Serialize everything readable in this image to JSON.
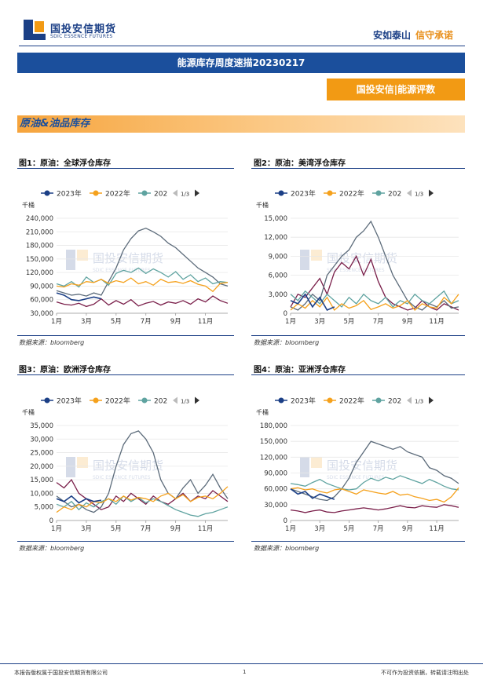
{
  "header": {
    "logo_cn": "国投安信期货",
    "logo_en": "SDIC ESSENCE FUTURES",
    "slogan_blue": "安如泰山",
    "slogan_orange": "信守承诺"
  },
  "banner_title": "能源库存周度速描20230217",
  "tag": "国投安信|能源评数",
  "section_title": "原油&油品库存",
  "watermark": "国投安信期货",
  "watermark_en": "SDIC ESSENCE FUTURES",
  "source_label": "数据来源：bloomberg",
  "legend": {
    "s2023": "2023年",
    "s2022": "2022年",
    "s202": "202",
    "pager": "1/3"
  },
  "colors": {
    "s2023": "#1b3f86",
    "s2022": "#f5a11c",
    "s2021": "#5fa3a0",
    "s2020": "#5c6b7a",
    "s2019": "#7a1f4a"
  },
  "figures": [
    {
      "title": "图1：原油：全球浮仓库存",
      "unit": "千桶",
      "x_ticks": [
        "1月",
        "3月",
        "5月",
        "7月",
        "9月",
        "11月"
      ]
    },
    {
      "title": "图2：原油：美湾浮仓库存",
      "unit": "千桶",
      "x_ticks": [
        "1月",
        "3月",
        "5月",
        "7月",
        "9月",
        "11月"
      ]
    },
    {
      "title": "图3：原油：欧洲浮仓库存",
      "unit": "千桶",
      "x_ticks": [
        "1月",
        "3月",
        "5月",
        "7月",
        "9月",
        "11月"
      ]
    },
    {
      "title": "图4：原油：亚洲浮仓库存",
      "unit": "千桶",
      "x_ticks": [
        "1月",
        "3月",
        "5月",
        "7月",
        "9月",
        "11月"
      ]
    }
  ],
  "chart_data": [
    {
      "type": "line",
      "title": "图1：原油：全球浮仓库存",
      "ylabel": "千桶",
      "y_ticks": [
        "30,000",
        "60,000",
        "90,000",
        "120,000",
        "150,000",
        "180,000",
        "210,000",
        "240,000"
      ],
      "ylim": [
        30000,
        240000
      ],
      "x_ticks": [
        "1月",
        "3月",
        "5月",
        "7月",
        "9月",
        "11月"
      ],
      "series": [
        {
          "name": "2023年",
          "key": "s2023",
          "values": [
            75000,
            70000,
            60000,
            58000,
            62000,
            66000,
            62000
          ]
        },
        {
          "name": "2022年",
          "key": "s2022",
          "values": [
            90000,
            88000,
            95000,
            92000,
            100000,
            98000,
            105000,
            96000,
            102000,
            98000,
            108000,
            95000,
            100000,
            92000,
            105000,
            98000,
            100000,
            96000,
            102000,
            94000,
            90000,
            78000,
            96000,
            98000
          ]
        },
        {
          "name": "202",
          "key": "s2021",
          "values": [
            95000,
            90000,
            100000,
            88000,
            110000,
            98000,
            105000,
            92000,
            118000,
            125000,
            120000,
            130000,
            118000,
            128000,
            120000,
            110000,
            122000,
            105000,
            115000,
            100000,
            108000,
            95000,
            100000,
            98000
          ]
        },
        {
          "key": "s2020",
          "values": [
            80000,
            75000,
            70000,
            72000,
            68000,
            75000,
            70000,
            100000,
            130000,
            170000,
            195000,
            212000,
            218000,
            210000,
            200000,
            185000,
            175000,
            160000,
            145000,
            130000,
            120000,
            110000,
            95000,
            90000
          ]
        },
        {
          "key": "s2019",
          "values": [
            55000,
            50000,
            48000,
            52000,
            45000,
            50000,
            62000,
            48000,
            58000,
            50000,
            60000,
            46000,
            52000,
            56000,
            48000,
            55000,
            52000,
            58000,
            50000,
            62000,
            55000,
            68000,
            58000,
            52000
          ]
        }
      ]
    },
    {
      "type": "line",
      "title": "图2：原油：美湾浮仓库存",
      "ylabel": "千桶",
      "y_ticks": [
        "0",
        "3,000",
        "6,000",
        "9,000",
        "12,000",
        "15,000"
      ],
      "ylim": [
        0,
        15000
      ],
      "x_ticks": [
        "1月",
        "3月",
        "5月",
        "7月",
        "9月",
        "11月"
      ],
      "series": [
        {
          "name": "2023年",
          "key": "s2023",
          "values": [
            2000,
            1500,
            3000,
            1000,
            2500,
            500,
            1000
          ]
        },
        {
          "name": "2022年",
          "key": "s2022",
          "values": [
            500,
            1500,
            800,
            2000,
            1000,
            2500,
            500,
            1500,
            800,
            1200,
            2000,
            600,
            1000,
            1500,
            800,
            1200,
            2000,
            500,
            1500,
            1000,
            800,
            2500,
            1500,
            3000
          ]
        },
        {
          "name": "202",
          "key": "s2021",
          "values": [
            3000,
            2000,
            3500,
            2500,
            1500,
            3000,
            2000,
            1000,
            2500,
            1500,
            3000,
            2000,
            1500,
            2500,
            1000,
            2000,
            1500,
            3000,
            2000,
            1500,
            2500,
            3500,
            1500,
            2000
          ]
        },
        {
          "key": "s2020",
          "values": [
            1000,
            500,
            1500,
            3000,
            2000,
            6000,
            7500,
            9000,
            10000,
            12000,
            13000,
            14500,
            12000,
            9000,
            6000,
            4000,
            2000,
            1000,
            500,
            1500,
            1000,
            2000,
            800,
            1000
          ]
        },
        {
          "key": "s2019",
          "values": [
            1000,
            3000,
            2500,
            4000,
            5500,
            3000,
            6500,
            8000,
            7000,
            9000,
            6000,
            8500,
            5000,
            2500,
            1500,
            1000,
            500,
            800,
            2000,
            1000,
            500,
            1500,
            1000,
            500
          ]
        }
      ]
    },
    {
      "type": "line",
      "title": "图3：原油：欧洲浮仓库存",
      "ylabel": "千桶",
      "y_ticks": [
        "0",
        "5,000",
        "10,000",
        "15,000",
        "20,000",
        "25,000",
        "30,000",
        "35,000"
      ],
      "ylim": [
        0,
        35000
      ],
      "x_ticks": [
        "1月",
        "3月",
        "5月",
        "7月",
        "9月",
        "11月"
      ],
      "series": [
        {
          "name": "2023年",
          "key": "s2023",
          "values": [
            8000,
            7000,
            9000,
            6500,
            8000,
            7000,
            7500
          ]
        },
        {
          "name": "2022年",
          "key": "s2022",
          "values": [
            3000,
            5000,
            4000,
            6000,
            5000,
            7000,
            6500,
            8000,
            7000,
            9000,
            7500,
            8500,
            8000,
            7000,
            9000,
            10000,
            8000,
            9500,
            7000,
            8500,
            9000,
            8000,
            10000,
            12500
          ]
        },
        {
          "name": "202",
          "key": "s2021",
          "values": [
            6000,
            5000,
            7000,
            4000,
            6500,
            5000,
            7000,
            8000,
            6000,
            9000,
            7000,
            8500,
            6500,
            8000,
            7000,
            5500,
            4000,
            3000,
            2000,
            1500,
            2500,
            3000,
            4000,
            5000
          ]
        },
        {
          "key": "s2020",
          "values": [
            9000,
            7000,
            5000,
            6000,
            4000,
            3000,
            5000,
            10000,
            20000,
            28000,
            32000,
            33000,
            30000,
            25000,
            15000,
            10000,
            8000,
            12000,
            15000,
            10000,
            13000,
            17000,
            12000,
            8000
          ]
        },
        {
          "key": "s2019",
          "values": [
            14000,
            12000,
            15000,
            10000,
            8000,
            6000,
            4000,
            5000,
            9000,
            7000,
            10000,
            8000,
            6000,
            9000,
            7000,
            6000,
            8000,
            10000,
            7000,
            9000,
            8000,
            11000,
            9000,
            7000
          ]
        }
      ]
    },
    {
      "type": "line",
      "title": "图4：原油：亚洲浮仓库存",
      "ylabel": "千桶",
      "y_ticks": [
        "0",
        "30,000",
        "60,000",
        "90,000",
        "120,000",
        "150,000",
        "180,000"
      ],
      "ylim": [
        0,
        180000
      ],
      "x_ticks": [
        "1月",
        "3月",
        "5月",
        "7月",
        "9月",
        "11月"
      ],
      "series": [
        {
          "name": "2023年",
          "key": "s2023",
          "values": [
            60000,
            50000,
            55000,
            42000,
            50000,
            45000,
            40000
          ]
        },
        {
          "name": "2022年",
          "key": "s2022",
          "values": [
            60000,
            62000,
            58000,
            60000,
            55000,
            52000,
            58000,
            60000,
            55000,
            50000,
            58000,
            55000,
            52000,
            50000,
            55000,
            48000,
            50000,
            45000,
            42000,
            38000,
            40000,
            35000,
            45000,
            62000
          ]
        },
        {
          "name": "202",
          "key": "s2021",
          "values": [
            70000,
            68000,
            65000,
            72000,
            78000,
            70000,
            65000,
            60000,
            58000,
            60000,
            72000,
            80000,
            75000,
            82000,
            78000,
            85000,
            80000,
            75000,
            70000,
            78000,
            72000,
            65000,
            60000,
            58000
          ]
        },
        {
          "key": "s2020",
          "values": [
            60000,
            55000,
            50000,
            45000,
            40000,
            38000,
            45000,
            60000,
            80000,
            110000,
            130000,
            150000,
            145000,
            140000,
            135000,
            140000,
            130000,
            125000,
            120000,
            100000,
            95000,
            85000,
            80000,
            70000
          ]
        },
        {
          "key": "s2019",
          "values": [
            20000,
            18000,
            15000,
            18000,
            20000,
            16000,
            15000,
            18000,
            20000,
            22000,
            24000,
            22000,
            20000,
            22000,
            25000,
            28000,
            25000,
            24000,
            28000,
            26000,
            25000,
            30000,
            28000,
            25000
          ]
        }
      ]
    }
  ],
  "footer": {
    "left": "本报告版权属于国投安信期货有限公司",
    "page": "1",
    "right": "不可作为投资依据，转载请注明出处"
  }
}
